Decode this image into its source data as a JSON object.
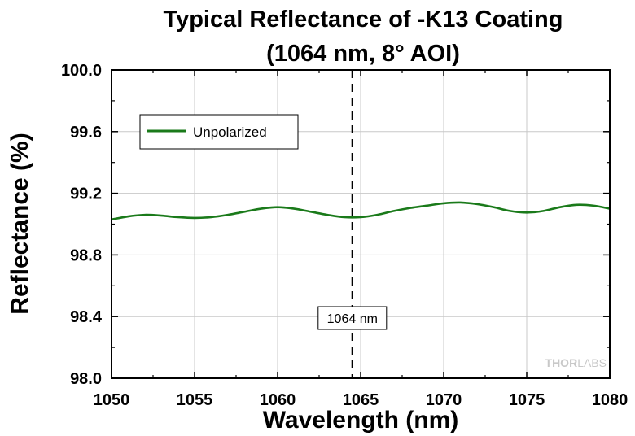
{
  "chart_data": {
    "type": "line",
    "title": "Typical Reflectance of -K13 Coating",
    "subtitle": "(1064 nm, 8° AOI)",
    "xlabel": "Wavelength (nm)",
    "ylabel": "Reflectance (%)",
    "xlim": [
      1050,
      1080
    ],
    "ylim": [
      98.0,
      100.0
    ],
    "x_ticks": [
      "1050",
      "1055",
      "1060",
      "1065",
      "1070",
      "1075",
      "1080"
    ],
    "y_ticks": [
      "98.0",
      "98.4",
      "98.8",
      "99.2",
      "99.6",
      "100.0"
    ],
    "grid": true,
    "legend_position": "top-left",
    "series": [
      {
        "name": "Unpolarized",
        "color": "#1a7a1a",
        "x": [
          1050,
          1051,
          1052,
          1053,
          1054,
          1055,
          1056,
          1057,
          1058,
          1059,
          1060,
          1061,
          1062,
          1063,
          1064,
          1065,
          1066,
          1067,
          1068,
          1069,
          1070,
          1071,
          1072,
          1073,
          1074,
          1075,
          1076,
          1077,
          1078,
          1079,
          1080
        ],
        "y": [
          99.03,
          99.05,
          99.06,
          99.055,
          99.045,
          99.04,
          99.045,
          99.06,
          99.08,
          99.1,
          99.11,
          99.1,
          99.08,
          99.06,
          99.045,
          99.045,
          99.06,
          99.085,
          99.105,
          99.12,
          99.135,
          99.14,
          99.13,
          99.11,
          99.085,
          99.075,
          99.085,
          99.11,
          99.125,
          99.12,
          99.1
        ]
      }
    ],
    "annotations": [
      {
        "type": "vertical-dashed-line",
        "x": 1064.5,
        "label": "1064 nm"
      }
    ]
  },
  "watermark": {
    "part1": "THOR",
    "part2": "LABS",
    "color": "#c8c8c8"
  }
}
